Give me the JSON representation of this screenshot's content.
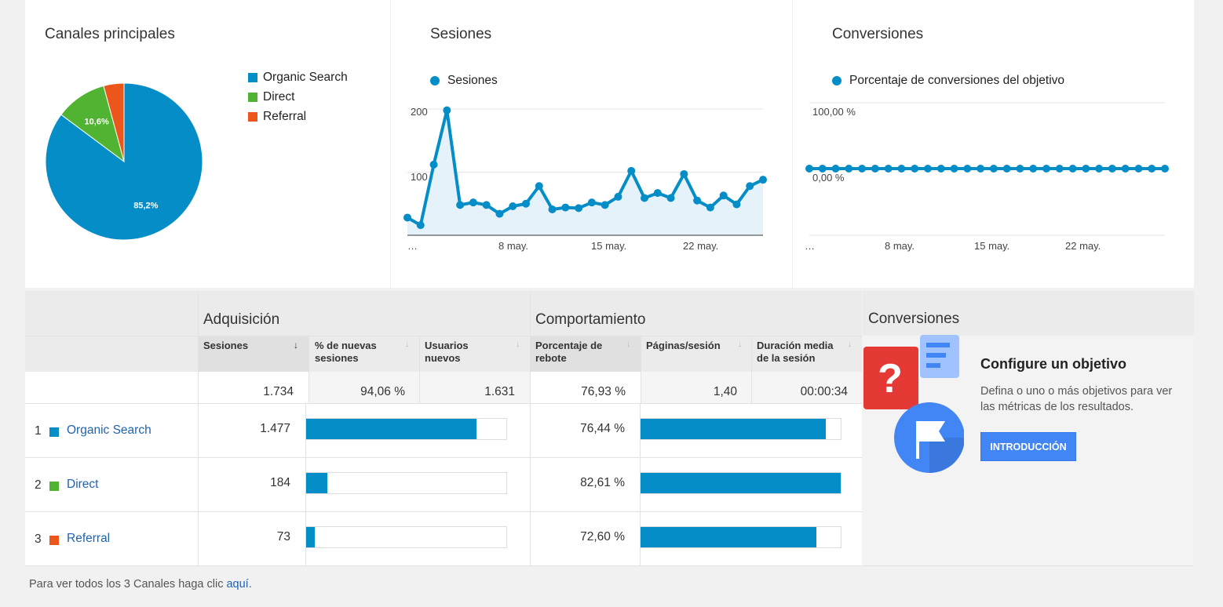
{
  "panels": {
    "channels": {
      "title": "Canales principales",
      "legend": [
        {
          "label": "Organic Search",
          "color": "#058dc7"
        },
        {
          "label": "Direct",
          "color": "#50b432"
        },
        {
          "label": "Referral",
          "color": "#ed561b"
        }
      ]
    },
    "sessions": {
      "title": "Sesiones",
      "legend_label": "Sesiones"
    },
    "conversions": {
      "title": "Conversiones",
      "legend_label": "Porcentaje de conversiones del objetivo"
    }
  },
  "chart_data": [
    {
      "type": "pie",
      "title": "Canales principales",
      "categories": [
        "Organic Search",
        "Direct",
        "Referral"
      ],
      "values": [
        85.2,
        10.6,
        4.2
      ],
      "labels": [
        "85,2%",
        "10,6%",
        ""
      ],
      "colors": [
        "#058dc7",
        "#50b432",
        "#ed561b"
      ],
      "legend": "right"
    },
    {
      "type": "area",
      "title": "Sesiones",
      "series": [
        {
          "name": "Sesiones",
          "values": [
            28,
            16,
            112,
            198,
            48,
            52,
            48,
            34,
            46,
            50,
            78,
            41,
            44,
            43,
            52,
            48,
            61,
            102,
            59,
            67,
            59,
            97,
            55,
            44,
            63,
            49,
            78,
            88
          ]
        }
      ],
      "x_ticks": [
        "…",
        "8 may.",
        "15 may.",
        "22 may."
      ],
      "y_ticks": [
        "200",
        "100"
      ],
      "ylim": [
        0,
        210
      ],
      "grid": true,
      "legend": "top"
    },
    {
      "type": "line",
      "title": "Conversiones",
      "series": [
        {
          "name": "Porcentaje de conversiones del objetivo",
          "values": [
            0,
            0,
            0,
            0,
            0,
            0,
            0,
            0,
            0,
            0,
            0,
            0,
            0,
            0,
            0,
            0,
            0,
            0,
            0,
            0,
            0,
            0,
            0,
            0,
            0,
            0,
            0,
            0
          ]
        }
      ],
      "x_ticks": [
        "…",
        "8 may.",
        "15 may.",
        "22 may."
      ],
      "y_ticks": [
        "100,00 %",
        "0,00 %"
      ],
      "grid": true,
      "legend": "top"
    }
  ],
  "table": {
    "groups": {
      "acquisition": "Adquisición",
      "behavior": "Comportamiento",
      "conversions": "Conversiones"
    },
    "columns": {
      "sessions": "Sesiones",
      "new_sessions": "% de nuevas sesiones",
      "new_users": "Usuarios nuevos",
      "bounce": "Porcentaje de rebote",
      "pages": "Páginas/sesión",
      "duration": "Duración media de la sesión"
    },
    "sort_arrow": "↓",
    "totals": {
      "sessions": "1.734",
      "new_sessions": "94,06 %",
      "new_users": "1.631",
      "bounce": "76,93 %",
      "pages": "1,40",
      "duration": "00:00:34"
    },
    "rows": [
      {
        "rank": "1",
        "name": "Organic Search",
        "color": "#058dc7",
        "sessions": "1.477",
        "sessions_fraction": 0.852,
        "bounce": "76,44 %",
        "bounce_fraction": 0.925
      },
      {
        "rank": "2",
        "name": "Direct",
        "color": "#50b432",
        "sessions": "184",
        "sessions_fraction": 0.106,
        "bounce": "82,61 %",
        "bounce_fraction": 1.0
      },
      {
        "rank": "3",
        "name": "Referral",
        "color": "#ed561b",
        "sessions": "73",
        "sessions_fraction": 0.042,
        "bounce": "72,60 %",
        "bounce_fraction": 0.879
      }
    ]
  },
  "goal": {
    "heading": "Configure un objetivo",
    "text": "Defina o uno o más objetivos para ver las métricas de los resultados.",
    "button": "INTRODUCCIÓN"
  },
  "footer": {
    "prefix": "Para ver todos los 3 Canales haga clic ",
    "link": "aquí",
    "suffix": "."
  }
}
